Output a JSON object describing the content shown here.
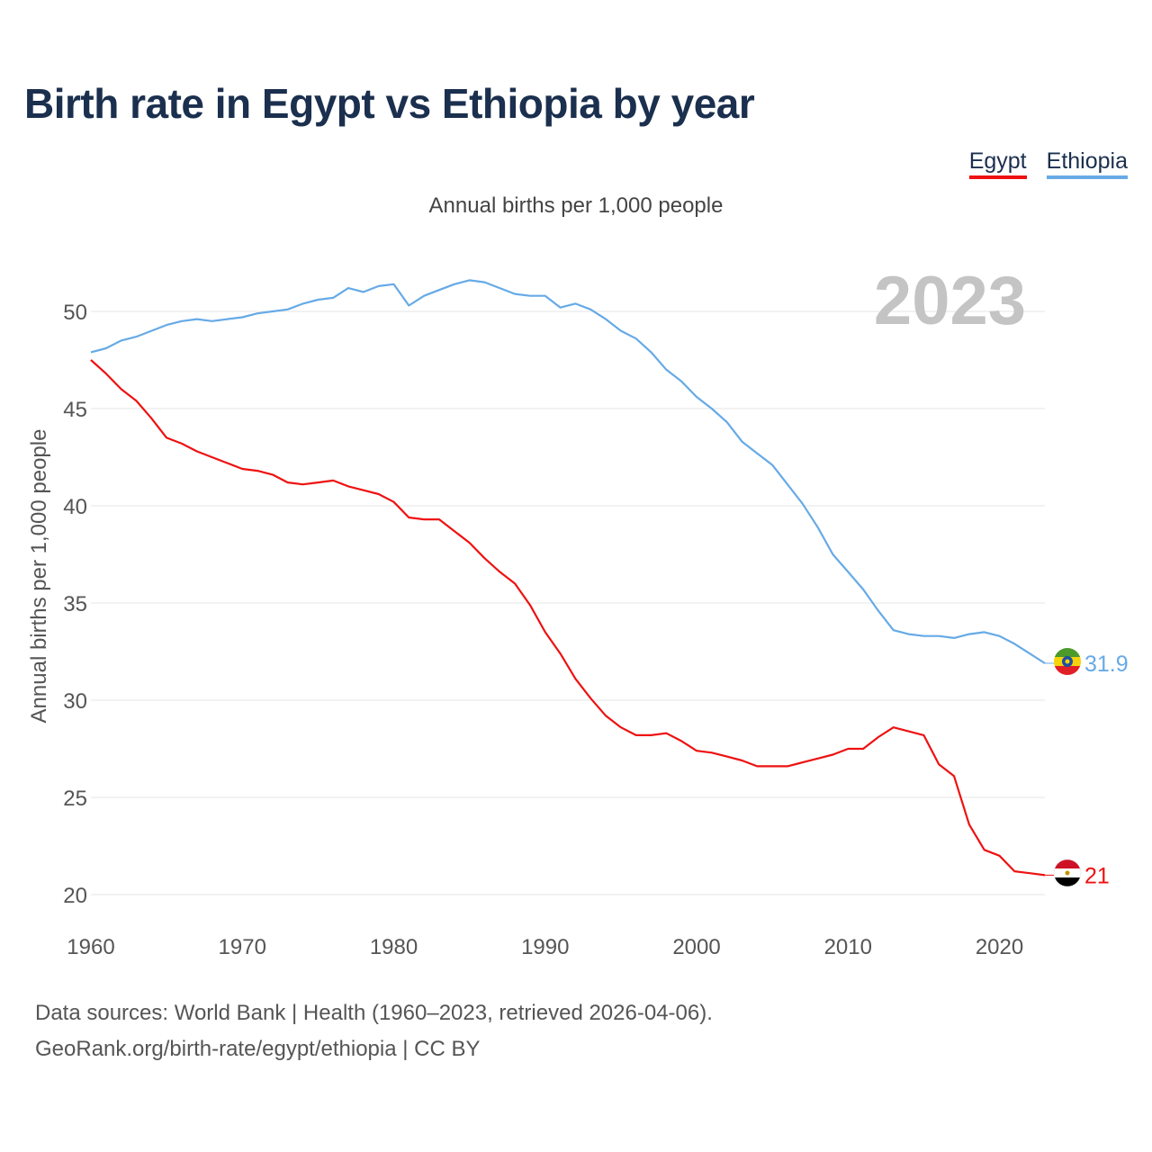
{
  "title": "Birth rate in Egypt vs Ethiopia by year",
  "legend": [
    {
      "label": "Egypt",
      "color": "#ee1111"
    },
    {
      "label": "Ethiopia",
      "color": "#66aae6"
    }
  ],
  "subtitle": "Annual births per 1,000 people",
  "year_watermark": "2023",
  "chart_data": {
    "type": "line",
    "title": "Birth rate in Egypt vs Ethiopia by year",
    "xlabel": "",
    "ylabel": "Annual births per 1,000 people",
    "xlim": [
      1960,
      2023
    ],
    "ylim": [
      20,
      52
    ],
    "x_ticks": [
      1960,
      1970,
      1980,
      1990,
      2000,
      2010,
      2020
    ],
    "y_ticks": [
      20,
      25,
      30,
      35,
      40,
      45,
      50
    ],
    "grid": true,
    "legend_position": "top-right",
    "x": [
      1960,
      1961,
      1962,
      1963,
      1964,
      1965,
      1966,
      1967,
      1968,
      1969,
      1970,
      1971,
      1972,
      1973,
      1974,
      1975,
      1976,
      1977,
      1978,
      1979,
      1980,
      1981,
      1982,
      1983,
      1984,
      1985,
      1986,
      1987,
      1988,
      1989,
      1990,
      1991,
      1992,
      1993,
      1994,
      1995,
      1996,
      1997,
      1998,
      1999,
      2000,
      2001,
      2002,
      2003,
      2004,
      2005,
      2006,
      2007,
      2008,
      2009,
      2010,
      2011,
      2012,
      2013,
      2014,
      2015,
      2016,
      2017,
      2018,
      2019,
      2020,
      2021,
      2022,
      2023
    ],
    "series": [
      {
        "name": "Egypt",
        "color": "#ee1111",
        "end_label": "21",
        "values": [
          47.5,
          46.8,
          46.0,
          45.4,
          44.5,
          43.5,
          43.2,
          42.8,
          42.5,
          42.2,
          41.9,
          41.8,
          41.6,
          41.2,
          41.1,
          41.2,
          41.3,
          41.0,
          40.8,
          40.6,
          40.2,
          39.4,
          39.3,
          39.3,
          38.7,
          38.1,
          37.3,
          36.6,
          36.0,
          34.9,
          33.5,
          32.4,
          31.1,
          30.1,
          29.2,
          28.6,
          28.2,
          28.2,
          28.3,
          27.9,
          27.4,
          27.3,
          27.1,
          26.9,
          26.6,
          26.6,
          26.6,
          26.8,
          27.0,
          27.2,
          27.5,
          27.5,
          28.1,
          28.6,
          28.4,
          28.2,
          26.7,
          26.1,
          23.6,
          22.3,
          22.0,
          21.2,
          21.1,
          21.0
        ]
      },
      {
        "name": "Ethiopia",
        "color": "#66aae6",
        "end_label": "31.9",
        "values": [
          47.9,
          48.1,
          48.5,
          48.7,
          49.0,
          49.3,
          49.5,
          49.6,
          49.5,
          49.6,
          49.7,
          49.9,
          50.0,
          50.1,
          50.4,
          50.6,
          50.7,
          51.2,
          51.0,
          51.3,
          51.4,
          50.3,
          50.8,
          51.1,
          51.4,
          51.6,
          51.5,
          51.2,
          50.9,
          50.8,
          50.8,
          50.2,
          50.4,
          50.1,
          49.6,
          49.0,
          48.6,
          47.9,
          47.0,
          46.4,
          45.6,
          45.0,
          44.3,
          43.3,
          42.7,
          42.1,
          41.1,
          40.1,
          38.9,
          37.5,
          36.6,
          35.7,
          34.6,
          33.6,
          33.4,
          33.3,
          33.3,
          33.2,
          33.4,
          33.5,
          33.3,
          32.9,
          32.4,
          31.9
        ]
      }
    ]
  },
  "footer": {
    "line1": "Data sources: World Bank | Health (1960–2023, retrieved 2026-04-06).",
    "line2": "GeoRank.org/birth-rate/egypt/ethiopia | CC BY"
  }
}
